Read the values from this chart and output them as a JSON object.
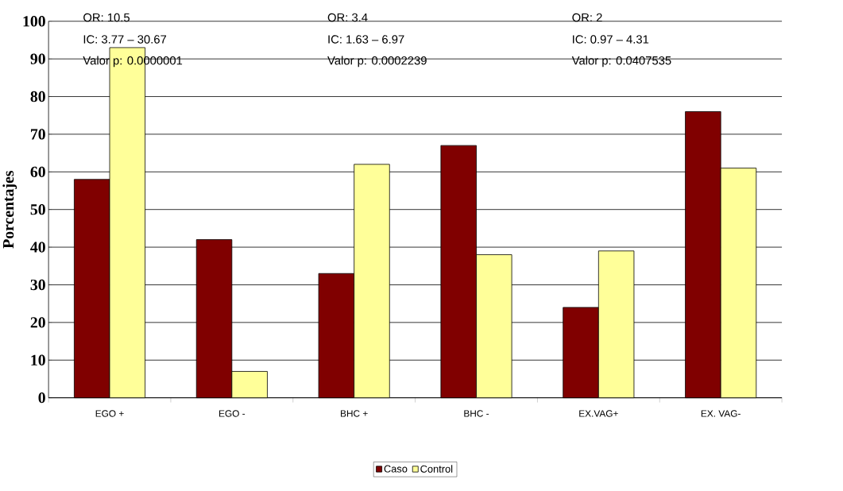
{
  "chart_data": {
    "type": "bar",
    "ylabel": "Porcentajes",
    "categories": [
      "EGO +",
      "EGO -",
      "BHC +",
      "BHC -",
      "EX.VAG+",
      "EX. VAG-"
    ],
    "series": [
      {
        "name": "Caso",
        "color": "#800000",
        "values": [
          58,
          42,
          33,
          67,
          24,
          76
        ]
      },
      {
        "name": "Control",
        "color": "#ffff99",
        "values": [
          93,
          7,
          62,
          38,
          39,
          61
        ]
      }
    ],
    "ylim": [
      0,
      100
    ],
    "yticks": [
      0,
      10,
      20,
      30,
      40,
      50,
      60,
      70,
      80,
      90,
      100
    ],
    "grid": "y",
    "legend": "bottom",
    "annotations": [
      "OR: 10.5",
      "IC: 3.77 – 30.67",
      "Valor p: 0.0000001",
      "OR: 3.4",
      "IC: 1.63 – 6.97",
      "Valor p: 0.0002239",
      "OR: 2",
      "IC: 0.97 – 4.31",
      "Valor p: 0.0407535"
    ]
  }
}
